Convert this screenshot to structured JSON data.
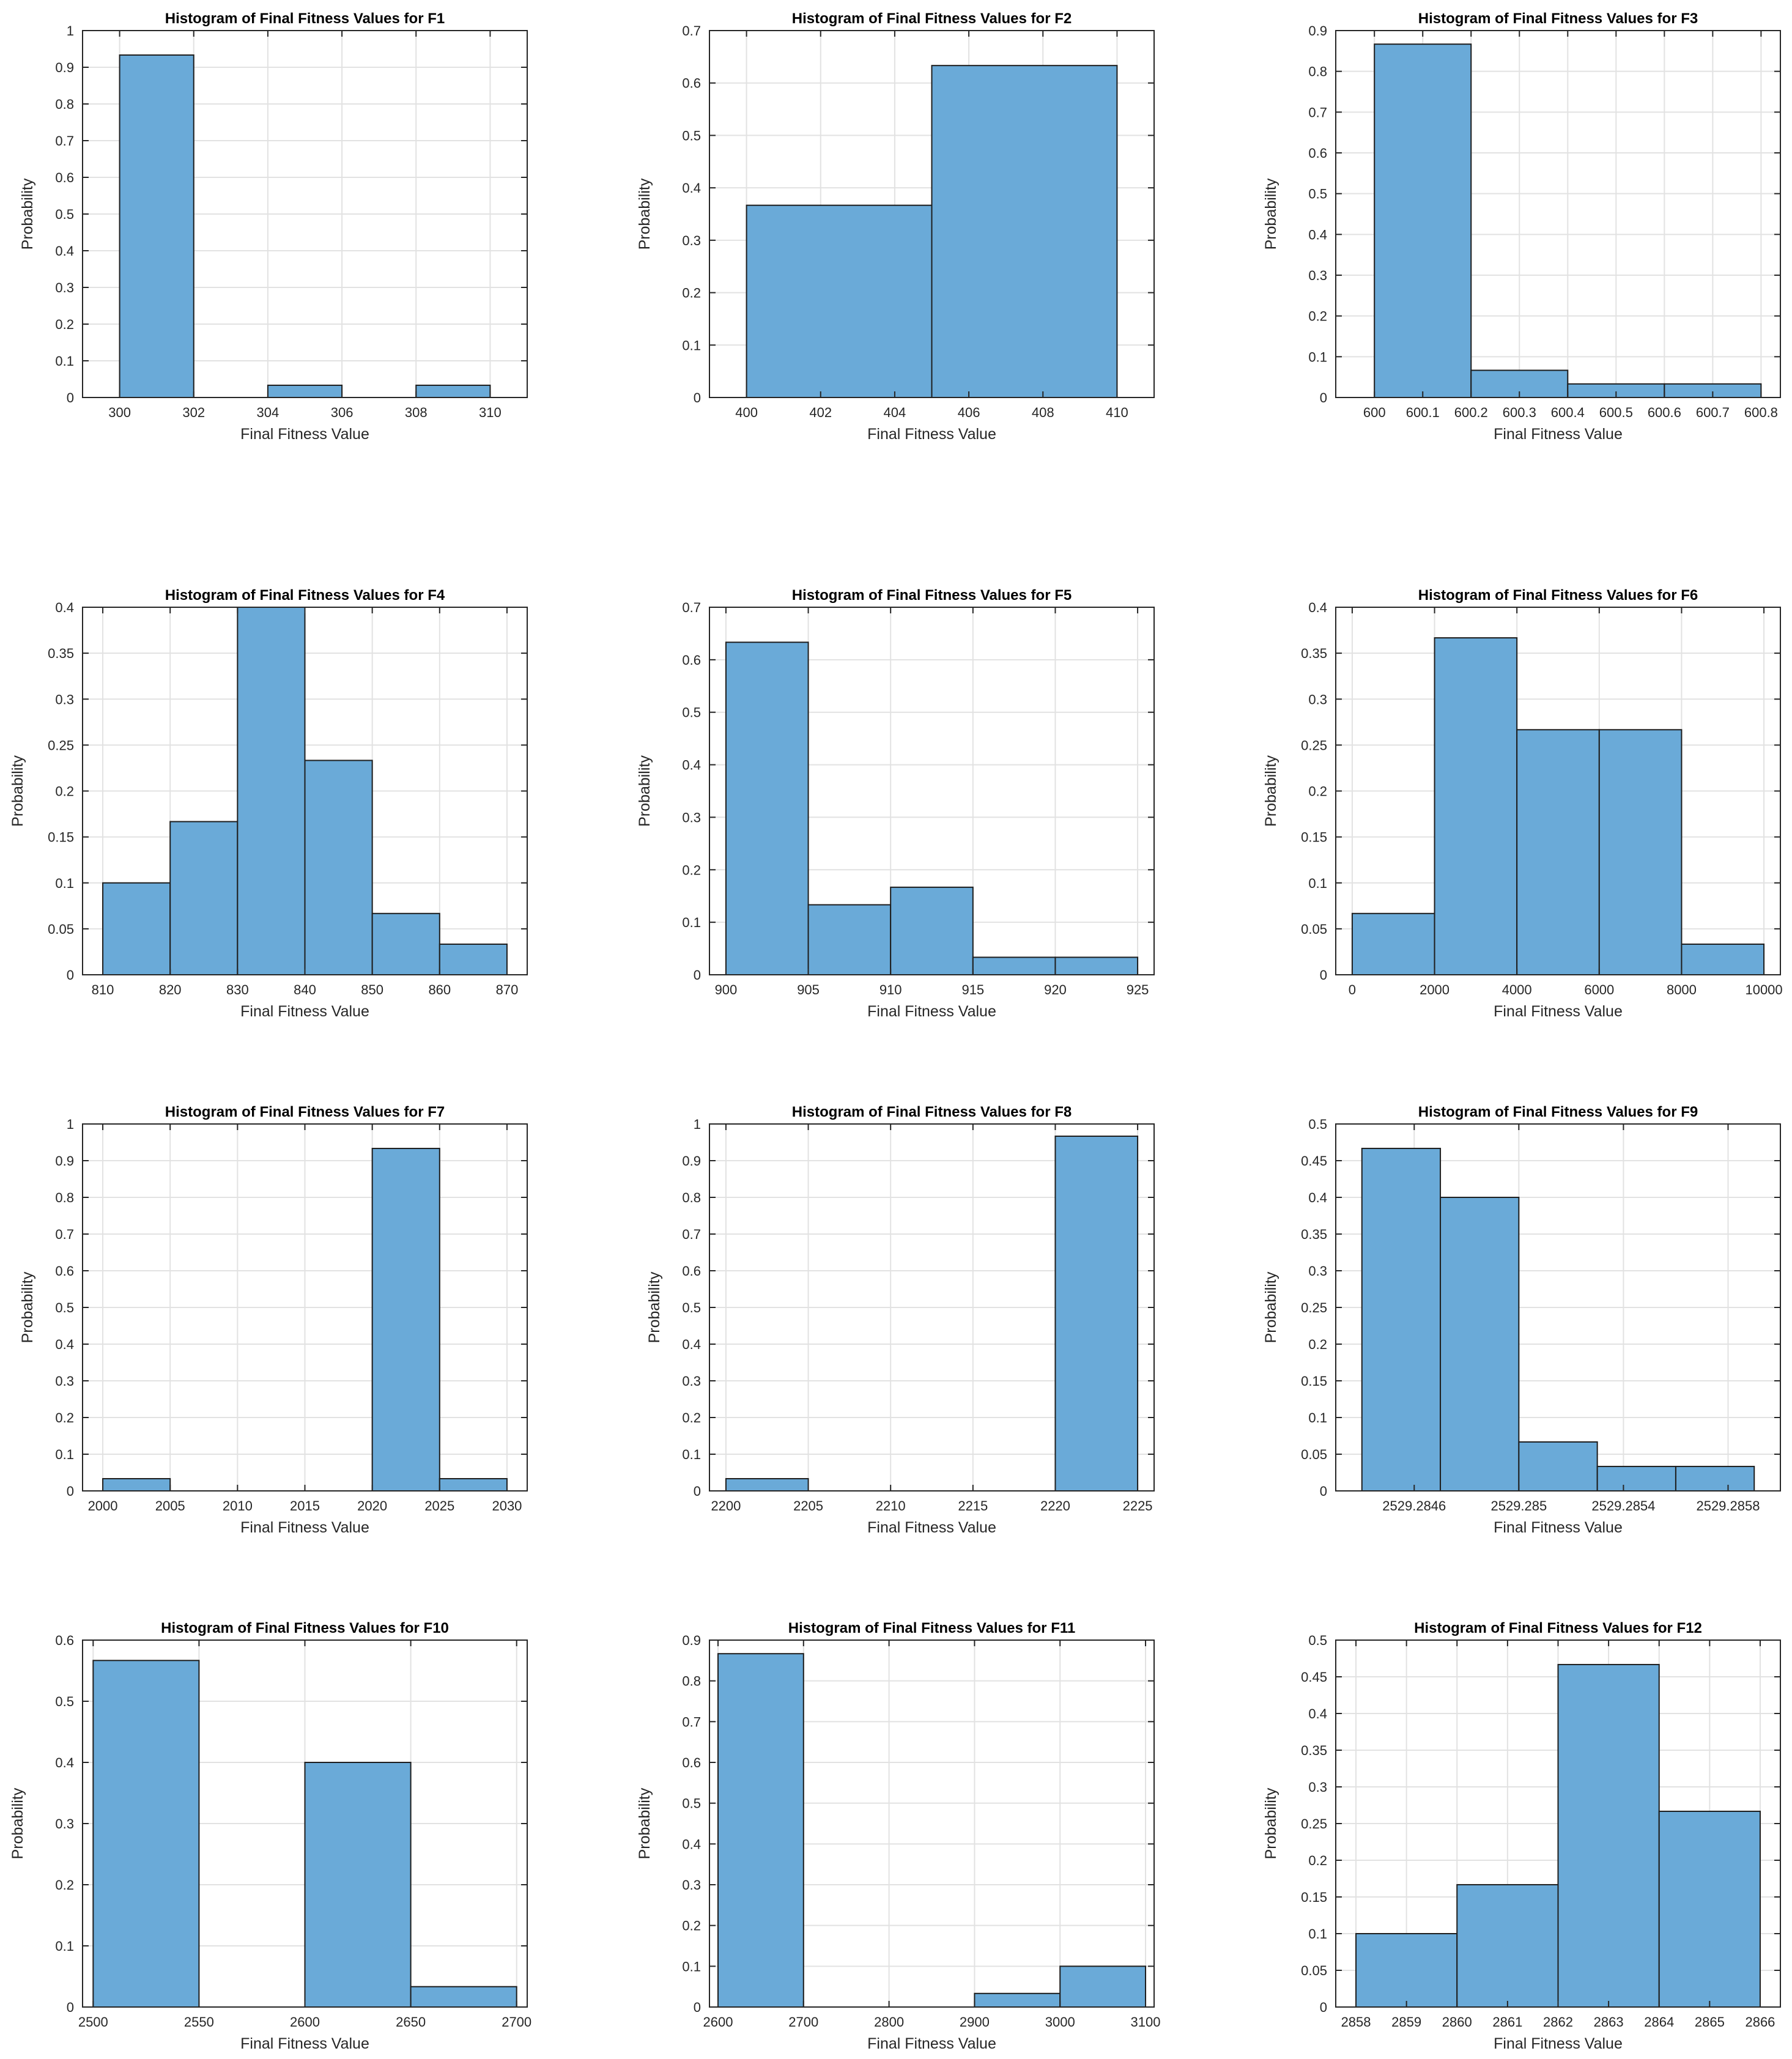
{
  "figure": {
    "background": "#ffffff",
    "bar_color": "#6aaad8",
    "bar_edge": "#1e1e1e",
    "grid_color": "#e2e2e2",
    "axis_color": "#262626"
  },
  "chart_data": [
    {
      "id": "F1",
      "type": "bar",
      "title": "Histogram of Final Fitness Values for F1",
      "xlabel": "Final Fitness Value",
      "ylabel": "Probability",
      "xlim": [
        299,
        311
      ],
      "ylim": [
        0,
        1
      ],
      "xticks": [
        300,
        302,
        304,
        306,
        308,
        310
      ],
      "xticklabels": [
        "300",
        "302",
        "304",
        "306",
        "308",
        "310"
      ],
      "yticks": [
        0,
        0.1,
        0.2,
        0.3,
        0.4,
        0.5,
        0.6,
        0.7,
        0.8,
        0.9,
        1
      ],
      "yticklabels": [
        "0",
        "0.1",
        "0.2",
        "0.3",
        "0.4",
        "0.5",
        "0.6",
        "0.7",
        "0.8",
        "0.9",
        "1"
      ],
      "bin_edges": [
        300,
        302,
        304,
        306,
        308,
        310
      ],
      "values": [
        0.9333,
        0,
        0.0333,
        0,
        0.0333
      ],
      "grid": true
    },
    {
      "id": "F2",
      "type": "bar",
      "title": "Histogram of Final Fitness Values for F2",
      "xlabel": "Final Fitness Value",
      "ylabel": "Probability",
      "xlim": [
        399,
        411
      ],
      "ylim": [
        0,
        0.7
      ],
      "xticks": [
        400,
        402,
        404,
        406,
        408,
        410
      ],
      "xticklabels": [
        "400",
        "402",
        "404",
        "406",
        "408",
        "410"
      ],
      "yticks": [
        0,
        0.1,
        0.2,
        0.3,
        0.4,
        0.5,
        0.6,
        0.7
      ],
      "yticklabels": [
        "0",
        "0.1",
        "0.2",
        "0.3",
        "0.4",
        "0.5",
        "0.6",
        "0.7"
      ],
      "bin_edges": [
        400,
        405,
        410
      ],
      "values": [
        0.3667,
        0.6333
      ],
      "grid": true
    },
    {
      "id": "F3",
      "type": "bar",
      "title": "Histogram of Final Fitness Values for F3",
      "xlabel": "Final Fitness Value",
      "ylabel": "Probability",
      "xlim": [
        599.92,
        600.84
      ],
      "ylim": [
        0,
        0.9
      ],
      "xticks": [
        600,
        600.1,
        600.2,
        600.3,
        600.4,
        600.5,
        600.6,
        600.7,
        600.8
      ],
      "xticklabels": [
        "600",
        "600.1",
        "600.2",
        "600.3",
        "600.4",
        "600.5",
        "600.6",
        "600.7",
        "600.8"
      ],
      "yticks": [
        0,
        0.1,
        0.2,
        0.3,
        0.4,
        0.5,
        0.6,
        0.7,
        0.8,
        0.9
      ],
      "yticklabels": [
        "0",
        "0.1",
        "0.2",
        "0.3",
        "0.4",
        "0.5",
        "0.6",
        "0.7",
        "0.8",
        "0.9"
      ],
      "bin_edges": [
        600,
        600.2,
        600.4,
        600.6,
        600.8
      ],
      "values": [
        0.8667,
        0.0667,
        0.0333,
        0.0333
      ],
      "grid": true
    },
    {
      "id": "F4",
      "type": "bar",
      "title": "Histogram of Final Fitness Values for F4",
      "xlabel": "Final Fitness Value",
      "ylabel": "Probability",
      "xlim": [
        807,
        873
      ],
      "ylim": [
        0,
        0.4
      ],
      "xticks": [
        810,
        820,
        830,
        840,
        850,
        860,
        870
      ],
      "xticklabels": [
        "810",
        "820",
        "830",
        "840",
        "850",
        "860",
        "870"
      ],
      "yticks": [
        0,
        0.05,
        0.1,
        0.15,
        0.2,
        0.25,
        0.3,
        0.35,
        0.4
      ],
      "yticklabels": [
        "0",
        "0.05",
        "0.1",
        "0.15",
        "0.2",
        "0.25",
        "0.3",
        "0.35",
        "0.4"
      ],
      "bin_edges": [
        810,
        820,
        830,
        840,
        850,
        860,
        870
      ],
      "values": [
        0.1,
        0.1667,
        0.4,
        0.2333,
        0.0667,
        0.0333
      ],
      "grid": true
    },
    {
      "id": "F5",
      "type": "bar",
      "title": "Histogram of Final Fitness Values for F5",
      "xlabel": "Final Fitness Value",
      "ylabel": "Probability",
      "xlim": [
        899,
        926
      ],
      "ylim": [
        0,
        0.7
      ],
      "xticks": [
        900,
        905,
        910,
        915,
        920,
        925
      ],
      "xticklabels": [
        "900",
        "905",
        "910",
        "915",
        "920",
        "925"
      ],
      "yticks": [
        0,
        0.1,
        0.2,
        0.3,
        0.4,
        0.5,
        0.6,
        0.7
      ],
      "yticklabels": [
        "0",
        "0.1",
        "0.2",
        "0.3",
        "0.4",
        "0.5",
        "0.6",
        "0.7"
      ],
      "bin_edges": [
        900,
        905,
        910,
        915,
        920,
        925
      ],
      "values": [
        0.6333,
        0.1333,
        0.1667,
        0.0333,
        0.0333
      ],
      "grid": true
    },
    {
      "id": "F6",
      "type": "bar",
      "title": "Histogram of Final Fitness Values for F6",
      "xlabel": "Final Fitness Value",
      "ylabel": "Probability",
      "xlim": [
        -400,
        10400
      ],
      "ylim": [
        0,
        0.4
      ],
      "xticks": [
        0,
        2000,
        4000,
        6000,
        8000,
        10000
      ],
      "xticklabels": [
        "0",
        "2000",
        "4000",
        "6000",
        "8000",
        "10000"
      ],
      "yticks": [
        0,
        0.05,
        0.1,
        0.15,
        0.2,
        0.25,
        0.3,
        0.35,
        0.4
      ],
      "yticklabels": [
        "0",
        "0.05",
        "0.1",
        "0.15",
        "0.2",
        "0.25",
        "0.3",
        "0.35",
        "0.4"
      ],
      "bin_edges": [
        0,
        2000,
        4000,
        6000,
        8000,
        10000
      ],
      "values": [
        0.0667,
        0.3667,
        0.2667,
        0.2667,
        0.0333
      ],
      "grid": true
    },
    {
      "id": "F7",
      "type": "bar",
      "title": "Histogram of Final Fitness Values for F7",
      "xlabel": "Final Fitness Value",
      "ylabel": "Probability",
      "xlim": [
        1998.5,
        2031.5
      ],
      "ylim": [
        0,
        1
      ],
      "xticks": [
        2000,
        2005,
        2010,
        2015,
        2020,
        2025,
        2030
      ],
      "xticklabels": [
        "2000",
        "2005",
        "2010",
        "2015",
        "2020",
        "2025",
        "2030"
      ],
      "yticks": [
        0,
        0.1,
        0.2,
        0.3,
        0.4,
        0.5,
        0.6,
        0.7,
        0.8,
        0.9,
        1
      ],
      "yticklabels": [
        "0",
        "0.1",
        "0.2",
        "0.3",
        "0.4",
        "0.5",
        "0.6",
        "0.7",
        "0.8",
        "0.9",
        "1"
      ],
      "bin_edges": [
        2000,
        2005,
        2010,
        2015,
        2020,
        2025,
        2030
      ],
      "values": [
        0.0333,
        0,
        0,
        0,
        0.9333,
        0.0333
      ],
      "grid": true
    },
    {
      "id": "F8",
      "type": "bar",
      "title": "Histogram of Final Fitness Values for F8",
      "xlabel": "Final Fitness Value",
      "ylabel": "Probability",
      "xlim": [
        2199,
        2226
      ],
      "ylim": [
        0,
        1
      ],
      "xticks": [
        2200,
        2205,
        2210,
        2215,
        2220,
        2225
      ],
      "xticklabels": [
        "2200",
        "2205",
        "2210",
        "2215",
        "2220",
        "2225"
      ],
      "yticks": [
        0,
        0.1,
        0.2,
        0.3,
        0.4,
        0.5,
        0.6,
        0.7,
        0.8,
        0.9,
        1
      ],
      "yticklabels": [
        "0",
        "0.1",
        "0.2",
        "0.3",
        "0.4",
        "0.5",
        "0.6",
        "0.7",
        "0.8",
        "0.9",
        "1"
      ],
      "bin_edges": [
        2200,
        2205,
        2210,
        2215,
        2220,
        2225
      ],
      "values": [
        0.0333,
        0,
        0,
        0,
        0.9667
      ],
      "grid": true
    },
    {
      "id": "F9",
      "type": "bar",
      "title": "Histogram of Final Fitness Values for F9",
      "xlabel": "Final Fitness Value",
      "ylabel": "Probability",
      "xlim": [
        2529.2843,
        2529.286
      ],
      "ylim": [
        0,
        0.5
      ],
      "xticks": [
        2529.2846,
        2529.285,
        2529.2854,
        2529.2858
      ],
      "xticklabels": [
        "2529.2846",
        "2529.285",
        "2529.2854",
        "2529.2858"
      ],
      "yticks": [
        0,
        0.05,
        0.1,
        0.15,
        0.2,
        0.25,
        0.3,
        0.35,
        0.4,
        0.45,
        0.5
      ],
      "yticklabels": [
        "0",
        "0.05",
        "0.1",
        "0.15",
        "0.2",
        "0.25",
        "0.3",
        "0.35",
        "0.4",
        "0.45",
        "0.5"
      ],
      "bin_edges": [
        2529.2844,
        2529.2847,
        2529.285,
        2529.2853,
        2529.2856,
        2529.2859
      ],
      "values": [
        0.4667,
        0.4,
        0.0667,
        0.0333,
        0.0333
      ],
      "grid": true
    },
    {
      "id": "F10",
      "type": "bar",
      "title": "Histogram of Final Fitness Values for F10",
      "xlabel": "Final Fitness Value",
      "ylabel": "Probability",
      "xlim": [
        2495,
        2705
      ],
      "ylim": [
        0,
        0.6
      ],
      "xticks": [
        2500,
        2550,
        2600,
        2650,
        2700
      ],
      "xticklabels": [
        "2500",
        "2550",
        "2600",
        "2650",
        "2700"
      ],
      "yticks": [
        0,
        0.1,
        0.2,
        0.3,
        0.4,
        0.5,
        0.6
      ],
      "yticklabels": [
        "0",
        "0.1",
        "0.2",
        "0.3",
        "0.4",
        "0.5",
        "0.6"
      ],
      "bin_edges": [
        2500,
        2550,
        2600,
        2650,
        2700
      ],
      "values": [
        0.5667,
        0,
        0.4,
        0.0333
      ],
      "grid": true
    },
    {
      "id": "F11",
      "type": "bar",
      "title": "Histogram of Final Fitness Values for F11",
      "xlabel": "Final Fitness Value",
      "ylabel": "Probability",
      "xlim": [
        2590,
        3110
      ],
      "ylim": [
        0,
        0.9
      ],
      "xticks": [
        2600,
        2700,
        2800,
        2900,
        3000,
        3100
      ],
      "xticklabels": [
        "2600",
        "2700",
        "2800",
        "2900",
        "3000",
        "3100"
      ],
      "yticks": [
        0,
        0.1,
        0.2,
        0.3,
        0.4,
        0.5,
        0.6,
        0.7,
        0.8,
        0.9
      ],
      "yticklabels": [
        "0",
        "0.1",
        "0.2",
        "0.3",
        "0.4",
        "0.5",
        "0.6",
        "0.7",
        "0.8",
        "0.9"
      ],
      "bin_edges": [
        2600,
        2700,
        2800,
        2900,
        3000,
        3100
      ],
      "values": [
        0.8667,
        0,
        0,
        0.0333,
        0.1
      ],
      "grid": true
    },
    {
      "id": "F12",
      "type": "bar",
      "title": "Histogram of Final Fitness Values for F12",
      "xlabel": "Final Fitness Value",
      "ylabel": "Probability",
      "xlim": [
        2857.6,
        2866.4
      ],
      "ylim": [
        0,
        0.5
      ],
      "xticks": [
        2858,
        2859,
        2860,
        2861,
        2862,
        2863,
        2864,
        2865,
        2866
      ],
      "xticklabels": [
        "2858",
        "2859",
        "2860",
        "2861",
        "2862",
        "2863",
        "2864",
        "2865",
        "2866"
      ],
      "yticks": [
        0,
        0.05,
        0.1,
        0.15,
        0.2,
        0.25,
        0.3,
        0.35,
        0.4,
        0.45,
        0.5
      ],
      "yticklabels": [
        "0",
        "0.05",
        "0.1",
        "0.15",
        "0.2",
        "0.25",
        "0.3",
        "0.35",
        "0.4",
        "0.45",
        "0.5"
      ],
      "bin_edges": [
        2858,
        2860,
        2862,
        2864,
        2866
      ],
      "values": [
        0.1,
        0.1667,
        0.4667,
        0.2667
      ],
      "grid": true
    }
  ]
}
